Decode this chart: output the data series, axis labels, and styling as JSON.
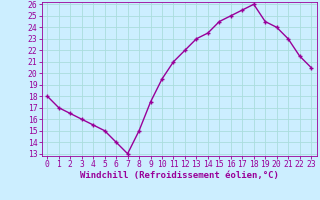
{
  "x": [
    0,
    1,
    2,
    3,
    4,
    5,
    6,
    7,
    8,
    9,
    10,
    11,
    12,
    13,
    14,
    15,
    16,
    17,
    18,
    19,
    20,
    21,
    22,
    23
  ],
  "y": [
    18,
    17,
    16.5,
    16,
    15.5,
    15,
    14,
    13,
    15,
    17.5,
    19.5,
    21,
    22,
    23,
    23.5,
    24.5,
    25,
    25.5,
    26,
    24.5,
    24,
    23,
    21.5,
    20.5
  ],
  "line_color": "#990099",
  "marker": "+",
  "marker_size": 3.5,
  "marker_edge_width": 1.0,
  "xlabel": "Windchill (Refroidissement éolien,°C)",
  "xlabel_fontsize": 6.5,
  "ylim": [
    13,
    26
  ],
  "xlim": [
    -0.5,
    23.5
  ],
  "yticks": [
    13,
    14,
    15,
    16,
    17,
    18,
    19,
    20,
    21,
    22,
    23,
    24,
    25,
    26
  ],
  "xticks": [
    0,
    1,
    2,
    3,
    4,
    5,
    6,
    7,
    8,
    9,
    10,
    11,
    12,
    13,
    14,
    15,
    16,
    17,
    18,
    19,
    20,
    21,
    22,
    23
  ],
  "grid_color": "#aadddd",
  "bg_color": "#cceeff",
  "tick_fontsize": 5.8,
  "line_width": 1.0
}
